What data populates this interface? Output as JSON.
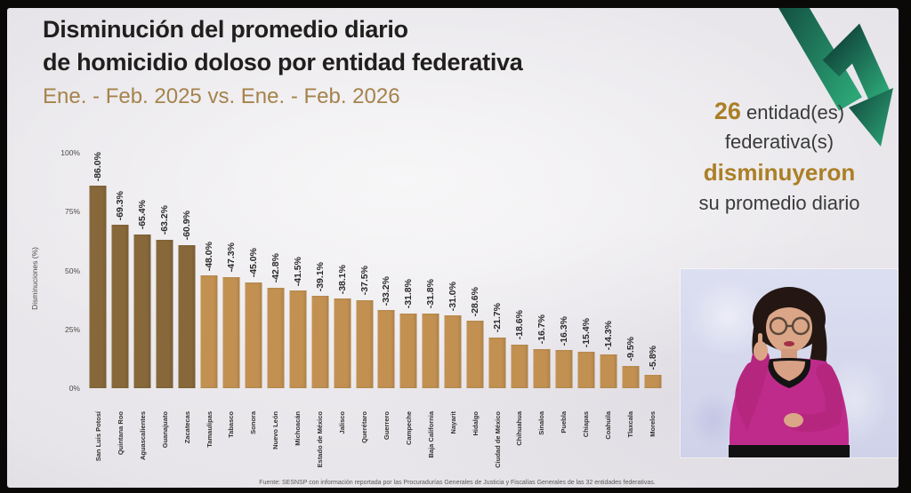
{
  "slide": {
    "title_line1": "Disminución del promedio diario",
    "title_line2": "de homicidio doloso por entidad federativa",
    "subtitle": "Ene. - Feb. 2025 vs. Ene. - Feb. 2026",
    "highlight": {
      "count": "26",
      "line1_rest": " entidad(es)",
      "line2": "federativa(s)",
      "line3": "disminuyeron",
      "line4": "su promedio diario"
    },
    "footer": "Fuente: SESNSP con información reportada por las Procuradurías Generales de Justicia y Fiscalías Generales de las 32 entidades federativas.",
    "accent_gold": "#ab7f26",
    "arrow_green_dark": "#11463b",
    "arrow_green_light": "#2ca677"
  },
  "chart_data": {
    "type": "bar",
    "title": "Disminución del promedio diario de homicidio doloso por entidad federativa",
    "xlabel": "",
    "ylabel": "Disminuciones (%)",
    "ylim": [
      0,
      100
    ],
    "yticks": [
      "0%",
      "25%",
      "50%",
      "75%",
      "100%"
    ],
    "grid": false,
    "legend_position": "none",
    "bar_colors": {
      "dark": "#87683a",
      "light": "#c29152",
      "dark_count": 5
    },
    "categories": [
      "San Luis Potosí",
      "Quintana Roo",
      "Aguascalientes",
      "Guanajuato",
      "Zacatecas",
      "Tamaulipas",
      "Tabasco",
      "Sonora",
      "Nuevo León",
      "Michoacán",
      "Estado de México",
      "Jalisco",
      "Querétaro",
      "Guerrero",
      "Campeche",
      "Baja California",
      "Nayarit",
      "Hidalgo",
      "Ciudad de México",
      "Chihuahua",
      "Sinaloa",
      "Puebla",
      "Chiapas",
      "Coahuila",
      "Tlaxcala",
      "Morelos"
    ],
    "values": [
      -86.0,
      -69.3,
      -65.4,
      -63.2,
      -60.9,
      -48.0,
      -47.3,
      -45.0,
      -42.8,
      -41.5,
      -39.1,
      -38.1,
      -37.5,
      -33.2,
      -31.8,
      -31.8,
      -31.0,
      -28.6,
      -21.7,
      -18.6,
      -16.7,
      -16.3,
      -15.4,
      -14.3,
      -9.5,
      -5.8
    ],
    "labels": [
      "-86.0%",
      "-69.3%",
      "-65.4%",
      "-63.2%",
      "-60.9%",
      "-48.0%",
      "-47.3%",
      "-45.0%",
      "-42.8%",
      "-41.5%",
      "-39.1%",
      "-38.1%",
      "-37.5%",
      "-33.2%",
      "-31.8%",
      "-31.8%",
      "-31.0%",
      "-28.6%",
      "-21.7%",
      "-18.6%",
      "-16.7%",
      "-16.3%",
      "-15.4%",
      "-14.3%",
      "-9.5%",
      "-5.8%"
    ]
  }
}
